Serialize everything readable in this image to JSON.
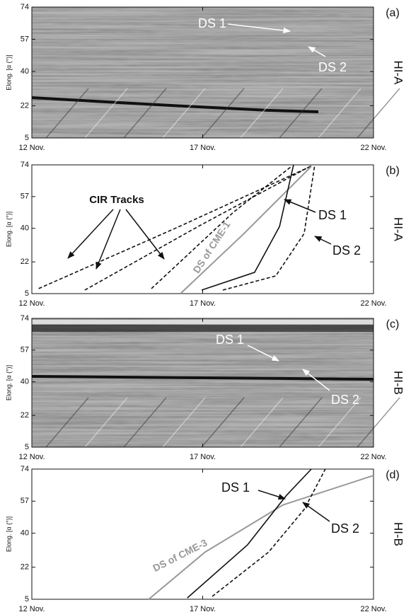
{
  "chart_data": [
    {
      "type": "image",
      "panel_label": "(a)",
      "instrument": "HI-A",
      "y_label": "Elong. [α (°)]",
      "xlim": [
        12,
        22
      ],
      "xticks": [
        {
          "value": 12,
          "label": "12 Nov."
        },
        {
          "value": 17,
          "label": "17 Nov."
        },
        {
          "value": 22,
          "label": "22 Nov."
        }
      ],
      "ylim": [
        5,
        74
      ],
      "yticks": [
        5,
        22,
        40,
        57,
        74
      ],
      "annotations": [
        "DS 1",
        "DS 2"
      ]
    },
    {
      "type": "line",
      "panel_label": "(b)",
      "instrument": "HI-A",
      "y_label": "Elong. [α (°)]",
      "xlim": [
        12,
        22
      ],
      "xticks": [
        {
          "value": 12,
          "label": "12 Nov."
        },
        {
          "value": 17,
          "label": "17 Nov."
        },
        {
          "value": 22,
          "label": "22 Nov."
        }
      ],
      "ylim": [
        5,
        74
      ],
      "yticks": [
        5,
        22,
        40,
        57,
        74
      ],
      "annotations": [
        "CIR Tracks"
      ],
      "series": [
        {
          "color": "#111111",
          "dashed": true,
          "x": [
            12.2,
            16.2,
            20.2
          ],
          "values": [
            7.7,
            40,
            73.5
          ]
        },
        {
          "color": "#111111",
          "dashed": true,
          "x": [
            13.55,
            16.87,
            20.18
          ],
          "values": [
            6.9,
            41,
            73.5
          ]
        },
        {
          "color": "#111111",
          "dashed": true,
          "x": [
            15.5,
            17.9,
            19.6
          ],
          "values": [
            7.7,
            48.6,
            73.2
          ]
        },
        {
          "name": "DS of CME-1",
          "color": "#999999",
          "dashed": false,
          "x": [
            16.35,
            18.21,
            20.18
          ],
          "values": [
            5,
            37.2,
            73.2
          ]
        },
        {
          "name": "DS 1",
          "color": "#111111",
          "dashed": false,
          "x": [
            16.97,
            18.52,
            19.25,
            19.66
          ],
          "values": [
            6.9,
            16.4,
            41,
            74
          ]
        },
        {
          "name": "DS 2",
          "color": "#111111",
          "dashed": true,
          "x": [
            17.59,
            19.14,
            19.97,
            20.28
          ],
          "values": [
            6.9,
            14.5,
            37.2,
            74
          ]
        }
      ]
    },
    {
      "type": "image",
      "panel_label": "(c)",
      "instrument": "HI-B",
      "y_label": "Elong. [α (°)]",
      "xlim": [
        12,
        22
      ],
      "xticks": [
        {
          "value": 12,
          "label": "12 Nov."
        },
        {
          "value": 17,
          "label": "17 Nov."
        },
        {
          "value": 22,
          "label": "22 Nov."
        }
      ],
      "ylim": [
        5,
        74
      ],
      "yticks": [
        5,
        22,
        40,
        57,
        74
      ],
      "annotations": [
        "DS 1",
        "DS 2"
      ]
    },
    {
      "type": "line",
      "panel_label": "(d)",
      "instrument": "HI-B",
      "y_label": "Elong. [α (°)]",
      "xlim": [
        12,
        22
      ],
      "xticks": [
        {
          "value": 12,
          "label": "12 Nov."
        },
        {
          "value": 17,
          "label": "17 Nov."
        },
        {
          "value": 22,
          "label": "22 Nov."
        }
      ],
      "ylim": [
        5,
        74
      ],
      "yticks": [
        5,
        22,
        40,
        57,
        74
      ],
      "series": [
        {
          "name": "DS of CME-3",
          "color": "#999999",
          "dashed": false,
          "x": [
            15.42,
            17.07,
            19.35,
            22
          ],
          "values": [
            5,
            30,
            55,
            70.6
          ]
        },
        {
          "name": "DS 1",
          "color": "#111111",
          "dashed": false,
          "x": [
            16.55,
            18.31,
            19.45,
            20.18
          ],
          "values": [
            5.7,
            33.8,
            60,
            74
          ]
        },
        {
          "name": "DS 2",
          "color": "#111111",
          "dashed": true,
          "x": [
            17.28,
            18.93,
            19.97,
            20.59
          ],
          "values": [
            6.5,
            30,
            52.6,
            74
          ]
        }
      ]
    }
  ]
}
